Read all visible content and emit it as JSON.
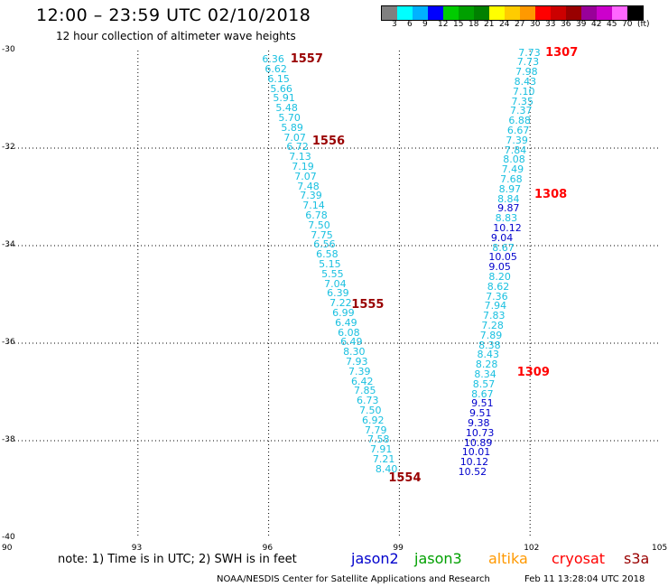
{
  "header": {
    "title": "12:00 – 23:59 UTC 02/10/2018",
    "subtitle": "12 hour collection of altimeter wave heights"
  },
  "legend": {
    "colors": [
      "#808080",
      "#00ffff",
      "#00b2ff",
      "#0000ff",
      "#00cc00",
      "#00a000",
      "#008000",
      "#ffff00",
      "#ffcc00",
      "#ff9900",
      "#ff0000",
      "#cc0000",
      "#990000",
      "#990099",
      "#cc00cc",
      "#ff66ff",
      "#000000"
    ],
    "labels": [
      "3",
      "6",
      "9",
      "12",
      "15",
      "18",
      "21",
      "24",
      "27",
      "30",
      "33",
      "36",
      "39",
      "42",
      "45",
      "70",
      "(ft)"
    ]
  },
  "axes": {
    "x_ticks": [
      "90",
      "93",
      "96",
      "99",
      "102",
      "105"
    ],
    "y_ticks": [
      "-30",
      "-32",
      "-34",
      "-36",
      "-38",
      "-40"
    ]
  },
  "tracks": [
    {
      "color": "#1ac0e0",
      "lat_start": -30.17,
      "lat_step": -0.2,
      "lon_start": 96.1,
      "lon_end": 98.7,
      "values": [
        "6.36",
        "6.62",
        "6.15",
        "5.66",
        "5.91",
        "5.48",
        "5.70",
        "5.89",
        "7.07",
        "6.72",
        "7.13",
        "7.19",
        "7.07",
        "7.48",
        "7.39",
        "7.14",
        "6.78",
        "7.50",
        "7.75",
        "6.56",
        "6.58",
        "5.15",
        "5.55",
        "7.04",
        "6.39",
        "7.22",
        "6.99",
        "6.49",
        "6.08",
        "6.49",
        "8.30",
        "7.93",
        "7.39",
        "6.42",
        "7.85",
        "6.73",
        "7.50",
        "6.92",
        "7.79",
        "7.58",
        "7.91",
        "7.21",
        "8.40"
      ]
    },
    {
      "color": "#1ac0e0",
      "lat_start": -30.03,
      "lat_step": -0.2,
      "lon_start": 101.98,
      "lon_end": 101.5,
      "values": [
        "7.73",
        "7.73",
        "7.98",
        "8.43",
        "7.10",
        "7.35",
        "7.37",
        "6.88",
        "6.67",
        "7.39",
        "7.84",
        "8.08",
        "7.49",
        "7.68",
        "8.97",
        "8.84"
      ]
    },
    {
      "color": "#0000cc",
      "lat_start": -33.23,
      "lat_step": -0.2,
      "lon_start": 101.5,
      "lon_end": 101.42,
      "values": [
        "9.87"
      ]
    },
    {
      "color": "#1ac0e0",
      "lat_start": -33.43,
      "lat_step": -0.2,
      "lon_start": 101.45,
      "lon_end": 101.45,
      "values": [
        "8.83"
      ]
    },
    {
      "color": "#0000cc",
      "lat_start": -33.63,
      "lat_step": -0.2,
      "lon_start": 101.4,
      "lon_end": 101.35,
      "values": [
        "10.12",
        "9.04"
      ]
    },
    {
      "color": "#1ac0e0",
      "lat_start": -34.03,
      "lat_step": -0.2,
      "lon_start": 101.38,
      "lon_end": 101.38,
      "values": [
        "8.67"
      ]
    },
    {
      "color": "#0000cc",
      "lat_start": -34.23,
      "lat_step": -0.2,
      "lon_start": 101.3,
      "lon_end": 101.3,
      "values": [
        "10.05",
        "9.05"
      ]
    },
    {
      "color": "#1ac0e0",
      "lat_start": -34.63,
      "lat_step": -0.2,
      "lon_start": 101.3,
      "lon_end": 100.9,
      "values": [
        "8.20",
        "8.62",
        "7.36",
        "7.94",
        "7.83",
        "7.28",
        "7.89",
        "8.38",
        "8.43",
        "8.28",
        "8.34",
        "8.57",
        "8.67"
      ]
    },
    {
      "color": "#0000cc",
      "lat_start": -37.23,
      "lat_step": -0.2,
      "lon_start": 100.9,
      "lon_end": 100.6,
      "values": [
        "9.51",
        "9.51",
        "9.38",
        "10.73",
        "10.89",
        "10.01",
        "10.12",
        "10.52"
      ]
    }
  ],
  "pass_labels": [
    {
      "text": "1557",
      "color": "#990000",
      "lat": -30.17,
      "lon": 96.5
    },
    {
      "text": "1556",
      "color": "#990000",
      "lat": -31.85,
      "lon": 97.0
    },
    {
      "text": "1555",
      "color": "#990000",
      "lat": -35.2,
      "lon": 97.9
    },
    {
      "text": "1554",
      "color": "#990000",
      "lat": -38.75,
      "lon": 98.75
    },
    {
      "text": "1307",
      "color": "#ff0000",
      "lat": -30.03,
      "lon": 102.35
    },
    {
      "text": "1308",
      "color": "#ff0000",
      "lat": -32.95,
      "lon": 102.1
    },
    {
      "text": "1309",
      "color": "#ff0000",
      "lat": -36.6,
      "lon": 101.7
    }
  ],
  "footer": {
    "note": "note:  1) Time is in UTC;  2) SWH is in feet",
    "satellites": [
      {
        "name": "jason2",
        "color": "#0000cc"
      },
      {
        "name": "jason3",
        "color": "#00a000"
      },
      {
        "name": "altika",
        "color": "#ff9900"
      },
      {
        "name": "cryosat",
        "color": "#ff0000"
      },
      {
        "name": "s3a",
        "color": "#990000"
      }
    ],
    "credit": "NOAA/NESDIS Center for Satellite Applications and Research",
    "timestamp": "Feb 11 13:28:04 UTC 2018"
  }
}
